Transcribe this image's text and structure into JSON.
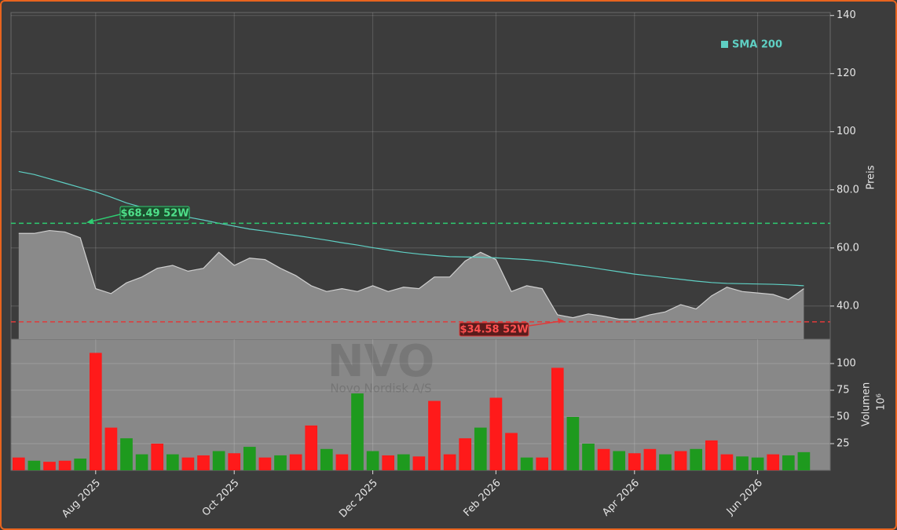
{
  "chart_data": {
    "type": "area",
    "categories": [
      null,
      null,
      null,
      null,
      null,
      "Aug 2025",
      null,
      null,
      null,
      null,
      null,
      null,
      null,
      null,
      "Oct 2025",
      null,
      null,
      null,
      null,
      null,
      null,
      null,
      null,
      "Dec 2025",
      null,
      null,
      null,
      null,
      null,
      null,
      null,
      "Feb 2026",
      null,
      null,
      null,
      null,
      null,
      null,
      null,
      null,
      "Apr 2026",
      null,
      null,
      null,
      null,
      null,
      null,
      null,
      "Jun 2026",
      null,
      null,
      null
    ],
    "price": {
      "color": "#cfcfcf",
      "fill": "#8a8a8a",
      "values": [
        65,
        65,
        66,
        65.5,
        63.5,
        46,
        44.3,
        48,
        50,
        53,
        54,
        52,
        53,
        58.5,
        54,
        56.5,
        56,
        53,
        50.5,
        47,
        45,
        46,
        45,
        47,
        45,
        46.5,
        46,
        50,
        50,
        55.5,
        58.5,
        56,
        45,
        47,
        46,
        37,
        36,
        37.3,
        36.5,
        35.5,
        35.5,
        37,
        38,
        40.5,
        39,
        43.5,
        46.5,
        45,
        44.5,
        44,
        42.2,
        46
      ]
    },
    "sma": {
      "name": "SMA 200",
      "color": "#5fd0c4",
      "values": [
        86.3,
        85.3,
        83.8,
        82.3,
        80.8,
        79.3,
        77.5,
        75.5,
        74,
        72.8,
        71.7,
        70.6,
        69.6,
        68.5,
        67.5,
        66.5,
        65.8,
        65,
        64.3,
        63.5,
        62.7,
        61.8,
        61,
        60.1,
        59.3,
        58.5,
        57.9,
        57.4,
        57,
        56.9,
        56.8,
        56.6,
        56.3,
        56,
        55.5,
        54.8,
        54.1,
        53.4,
        52.6,
        51.8,
        51,
        50.4,
        49.8,
        49.2,
        48.6,
        48.1,
        47.8,
        47.7,
        47.6,
        47.5,
        47.3,
        47
      ]
    },
    "ylim": [
      28.6,
      141
    ],
    "yticks": [
      {
        "value": 40,
        "label": "40.0"
      },
      {
        "value": 60,
        "label": "60.0"
      },
      {
        "value": 80,
        "label": "80.0"
      },
      100,
      120,
      140
    ],
    "ylabel": "Preis",
    "grid": true,
    "high_52w": {
      "value": 68.49,
      "label": "$68.49 52W",
      "color": "#2ecc71"
    },
    "low_52w": {
      "value": 34.58,
      "label": "$34.58 52W",
      "color": "#e03b3b"
    },
    "watermark": {
      "ticker": "NVO",
      "name": "Novo Nordisk A/S"
    },
    "volume": {
      "type": "bar",
      "values": [
        12,
        9,
        8,
        9,
        11,
        110,
        40,
        30,
        15,
        25,
        15,
        12,
        14,
        18,
        16,
        22,
        12,
        14,
        15,
        42,
        20,
        15,
        72,
        18,
        14,
        15,
        13,
        65,
        15,
        30,
        40,
        68,
        35,
        12,
        12,
        96,
        50,
        25,
        20,
        18,
        16,
        20,
        15,
        18,
        20,
        28,
        15,
        13,
        12,
        15,
        14,
        17
      ],
      "colors": [
        "#ff1a1a",
        "#1e9a1e",
        "#ff1a1a",
        "#ff1a1a",
        "#1e9a1e",
        "#ff1a1a",
        "#ff1a1a",
        "#1e9a1e",
        "#1e9a1e",
        "#ff1a1a",
        "#1e9a1e",
        "#ff1a1a",
        "#ff1a1a",
        "#1e9a1e",
        "#ff1a1a",
        "#1e9a1e",
        "#ff1a1a",
        "#1e9a1e",
        "#ff1a1a",
        "#ff1a1a",
        "#1e9a1e",
        "#ff1a1a",
        "#1e9a1e",
        "#1e9a1e",
        "#ff1a1a",
        "#1e9a1e",
        "#ff1a1a",
        "#ff1a1a",
        "#ff1a1a",
        "#ff1a1a",
        "#1e9a1e",
        "#ff1a1a",
        "#ff1a1a",
        "#1e9a1e",
        "#ff1a1a",
        "#ff1a1a",
        "#1e9a1e",
        "#1e9a1e",
        "#ff1a1a",
        "#1e9a1e",
        "#ff1a1a",
        "#ff1a1a",
        "#1e9a1e",
        "#ff1a1a",
        "#1e9a1e",
        "#ff1a1a",
        "#ff1a1a",
        "#1e9a1e",
        "#1e9a1e",
        "#ff1a1a",
        "#1e9a1e",
        "#1e9a1e"
      ],
      "ylim": [
        0,
        122.8
      ],
      "yticks": [
        25,
        50,
        75,
        100
      ],
      "ylabel": "Volumen",
      "unit": "10⁶"
    }
  }
}
